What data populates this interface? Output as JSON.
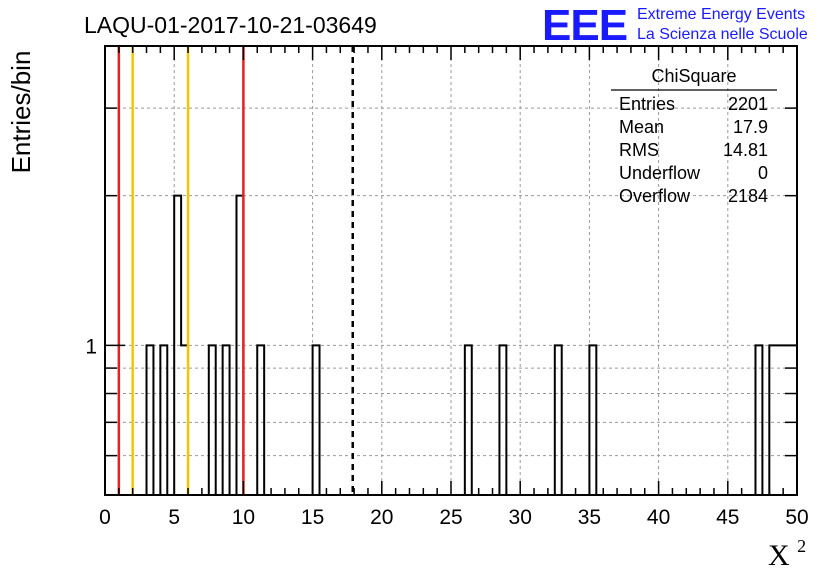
{
  "chart_data": {
    "type": "bar",
    "title": "LAQU-01-2017-10-21-03649",
    "xlabel": "X",
    "xlabel_superscript": "2",
    "ylabel": "Entries/bin",
    "xlim": [
      0,
      50
    ],
    "ylim": [
      0.5,
      4
    ],
    "y_scale": "log",
    "grid": true,
    "x_ticks": [
      "0",
      "5",
      "10",
      "15",
      "20",
      "25",
      "30",
      "35",
      "40",
      "45",
      "50"
    ],
    "y_tick_labels": [
      "1"
    ],
    "bin_width": 0.5,
    "bins": [
      {
        "x": 3.0,
        "count": 1
      },
      {
        "x": 4.0,
        "count": 1
      },
      {
        "x": 5.0,
        "count": 2
      },
      {
        "x": 5.5,
        "count": 1
      },
      {
        "x": 7.5,
        "count": 1
      },
      {
        "x": 8.5,
        "count": 1
      },
      {
        "x": 9.5,
        "count": 2
      },
      {
        "x": 11.0,
        "count": 1
      },
      {
        "x": 15.0,
        "count": 1
      },
      {
        "x": 26.0,
        "count": 1
      },
      {
        "x": 28.5,
        "count": 1
      },
      {
        "x": 32.5,
        "count": 1
      },
      {
        "x": 35.0,
        "count": 1
      },
      {
        "x": 47.0,
        "count": 1
      },
      {
        "x": 48.0,
        "count": 1
      },
      {
        "x": 48.5,
        "count": 1
      },
      {
        "x": 49.0,
        "count": 1
      },
      {
        "x": 49.5,
        "count": 1
      }
    ],
    "vertical_lines": [
      {
        "x": 1,
        "color": "#e32222",
        "style": "solid"
      },
      {
        "x": 2,
        "color": "#f5c400",
        "style": "solid"
      },
      {
        "x": 6,
        "color": "#f5c400",
        "style": "solid"
      },
      {
        "x": 10,
        "color": "#e32222",
        "style": "solid"
      },
      {
        "x": 17.9,
        "color": "#000000",
        "style": "dashed"
      }
    ],
    "stats_box": {
      "title": "ChiSquare",
      "rows": [
        {
          "label": "Entries",
          "value": "2201"
        },
        {
          "label": "Mean",
          "value": "17.9"
        },
        {
          "label": "RMS",
          "value": "14.81"
        },
        {
          "label": "Underflow",
          "value": "0"
        },
        {
          "label": "Overflow",
          "value": "2184"
        }
      ]
    }
  },
  "logo": {
    "big": "EEE",
    "line1": "Extreme Energy Events",
    "line2": "La Scienza nelle Scuole",
    "color": "#1a1aff"
  }
}
